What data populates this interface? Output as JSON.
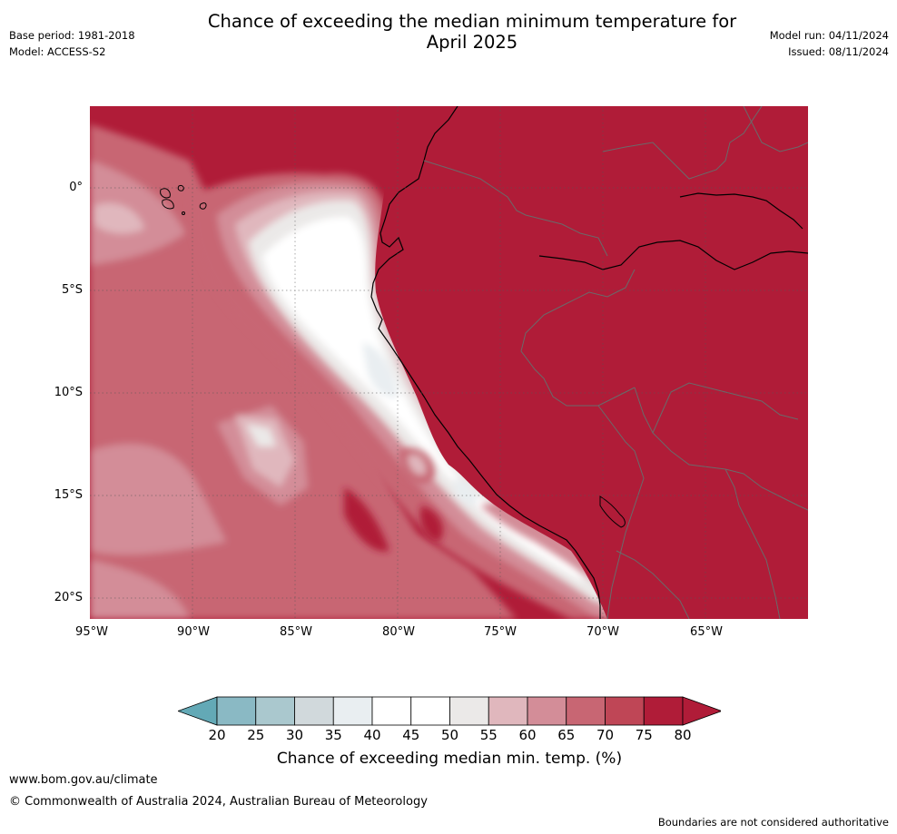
{
  "header": {
    "title_line1": "Chance of exceeding the median minimum temperature for",
    "title_line2": "April 2025",
    "base_period": "Base period: 1981-2018",
    "model": "Model: ACCESS-S2",
    "model_run": "Model run: 04/11/2024",
    "issued": "Issued: 08/11/2024"
  },
  "map": {
    "region": "Western South America and eastern Pacific",
    "lat_labels": [
      "0°",
      "5°S",
      "10°S",
      "15°S",
      "20°S"
    ],
    "lon_labels": [
      "95°W",
      "90°W",
      "85°W",
      "80°W",
      "75°W",
      "70°W",
      "65°W"
    ],
    "gridlines": true
  },
  "colorbar": {
    "title": "Chance of exceeding median min. temp. (%)",
    "ticks": [
      "20",
      "25",
      "30",
      "35",
      "40",
      "45",
      "50",
      "55",
      "60",
      "65",
      "70",
      "75",
      "80"
    ],
    "colors": [
      "#63a9b6",
      "#8ab9c4",
      "#aac8ce",
      "#d1d9dc",
      "#e9eef1",
      "#ffffff",
      "#ffffff",
      "#ebe9e8",
      "#e0b7bd",
      "#d38d98",
      "#c86673",
      "#bf4656",
      "#b01c38"
    ]
  },
  "footer": {
    "url": "www.bom.gov.au/climate",
    "copyright": "© Commonwealth of Australia 2024, Australian Bureau of Meteorology",
    "note": "Boundaries are not considered authoritative"
  }
}
